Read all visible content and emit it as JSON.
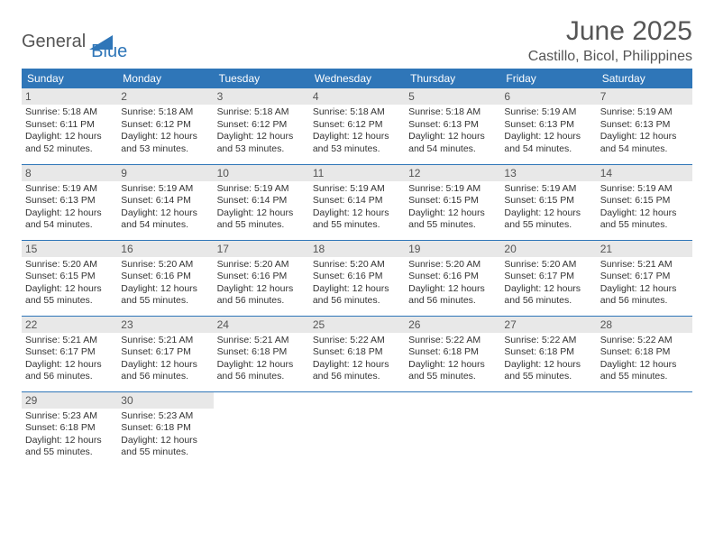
{
  "logo": {
    "word1": "General",
    "word2": "Blue",
    "accent_color": "#2f76b8",
    "text_color": "#555555"
  },
  "title": "June 2025",
  "location": "Castillo, Bicol, Philippines",
  "header_bg": "#2f76b8",
  "header_fg": "#ffffff",
  "daynum_bg": "#e8e8e8",
  "days": [
    "Sunday",
    "Monday",
    "Tuesday",
    "Wednesday",
    "Thursday",
    "Friday",
    "Saturday"
  ],
  "weeks": [
    [
      {
        "n": "1",
        "sr": "5:18 AM",
        "ss": "6:11 PM",
        "dl": "12 hours and 52 minutes."
      },
      {
        "n": "2",
        "sr": "5:18 AM",
        "ss": "6:12 PM",
        "dl": "12 hours and 53 minutes."
      },
      {
        "n": "3",
        "sr": "5:18 AM",
        "ss": "6:12 PM",
        "dl": "12 hours and 53 minutes."
      },
      {
        "n": "4",
        "sr": "5:18 AM",
        "ss": "6:12 PM",
        "dl": "12 hours and 53 minutes."
      },
      {
        "n": "5",
        "sr": "5:18 AM",
        "ss": "6:13 PM",
        "dl": "12 hours and 54 minutes."
      },
      {
        "n": "6",
        "sr": "5:19 AM",
        "ss": "6:13 PM",
        "dl": "12 hours and 54 minutes."
      },
      {
        "n": "7",
        "sr": "5:19 AM",
        "ss": "6:13 PM",
        "dl": "12 hours and 54 minutes."
      }
    ],
    [
      {
        "n": "8",
        "sr": "5:19 AM",
        "ss": "6:13 PM",
        "dl": "12 hours and 54 minutes."
      },
      {
        "n": "9",
        "sr": "5:19 AM",
        "ss": "6:14 PM",
        "dl": "12 hours and 54 minutes."
      },
      {
        "n": "10",
        "sr": "5:19 AM",
        "ss": "6:14 PM",
        "dl": "12 hours and 55 minutes."
      },
      {
        "n": "11",
        "sr": "5:19 AM",
        "ss": "6:14 PM",
        "dl": "12 hours and 55 minutes."
      },
      {
        "n": "12",
        "sr": "5:19 AM",
        "ss": "6:15 PM",
        "dl": "12 hours and 55 minutes."
      },
      {
        "n": "13",
        "sr": "5:19 AM",
        "ss": "6:15 PM",
        "dl": "12 hours and 55 minutes."
      },
      {
        "n": "14",
        "sr": "5:19 AM",
        "ss": "6:15 PM",
        "dl": "12 hours and 55 minutes."
      }
    ],
    [
      {
        "n": "15",
        "sr": "5:20 AM",
        "ss": "6:15 PM",
        "dl": "12 hours and 55 minutes."
      },
      {
        "n": "16",
        "sr": "5:20 AM",
        "ss": "6:16 PM",
        "dl": "12 hours and 55 minutes."
      },
      {
        "n": "17",
        "sr": "5:20 AM",
        "ss": "6:16 PM",
        "dl": "12 hours and 56 minutes."
      },
      {
        "n": "18",
        "sr": "5:20 AM",
        "ss": "6:16 PM",
        "dl": "12 hours and 56 minutes."
      },
      {
        "n": "19",
        "sr": "5:20 AM",
        "ss": "6:16 PM",
        "dl": "12 hours and 56 minutes."
      },
      {
        "n": "20",
        "sr": "5:20 AM",
        "ss": "6:17 PM",
        "dl": "12 hours and 56 minutes."
      },
      {
        "n": "21",
        "sr": "5:21 AM",
        "ss": "6:17 PM",
        "dl": "12 hours and 56 minutes."
      }
    ],
    [
      {
        "n": "22",
        "sr": "5:21 AM",
        "ss": "6:17 PM",
        "dl": "12 hours and 56 minutes."
      },
      {
        "n": "23",
        "sr": "5:21 AM",
        "ss": "6:17 PM",
        "dl": "12 hours and 56 minutes."
      },
      {
        "n": "24",
        "sr": "5:21 AM",
        "ss": "6:18 PM",
        "dl": "12 hours and 56 minutes."
      },
      {
        "n": "25",
        "sr": "5:22 AM",
        "ss": "6:18 PM",
        "dl": "12 hours and 56 minutes."
      },
      {
        "n": "26",
        "sr": "5:22 AM",
        "ss": "6:18 PM",
        "dl": "12 hours and 55 minutes."
      },
      {
        "n": "27",
        "sr": "5:22 AM",
        "ss": "6:18 PM",
        "dl": "12 hours and 55 minutes."
      },
      {
        "n": "28",
        "sr": "5:22 AM",
        "ss": "6:18 PM",
        "dl": "12 hours and 55 minutes."
      }
    ],
    [
      {
        "n": "29",
        "sr": "5:23 AM",
        "ss": "6:18 PM",
        "dl": "12 hours and 55 minutes."
      },
      {
        "n": "30",
        "sr": "5:23 AM",
        "ss": "6:18 PM",
        "dl": "12 hours and 55 minutes."
      },
      null,
      null,
      null,
      null,
      null
    ]
  ],
  "labels": {
    "sunrise": "Sunrise:",
    "sunset": "Sunset:",
    "daylight": "Daylight:"
  }
}
